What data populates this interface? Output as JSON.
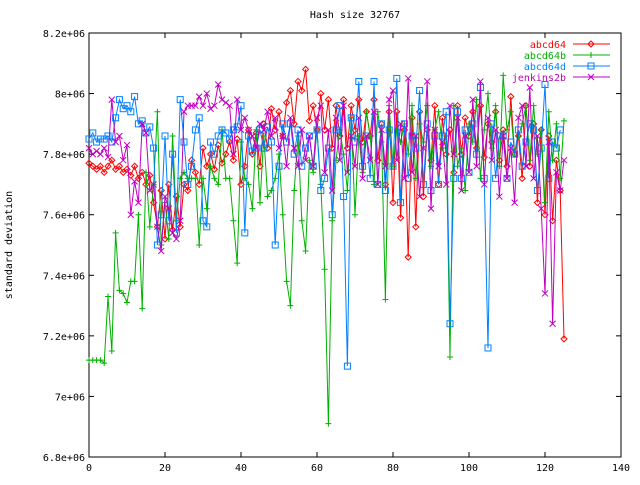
{
  "chart_data": {
    "type": "line",
    "title": "Hash size 32767",
    "xlabel": "",
    "ylabel": "standard deviation",
    "xlim": [
      0,
      140
    ],
    "ylim": [
      6800000,
      8200000
    ],
    "x_ticks": [
      {
        "value": 0,
        "label": "0"
      },
      {
        "value": 20,
        "label": "20"
      },
      {
        "value": 40,
        "label": "40"
      },
      {
        "value": 60,
        "label": "60"
      },
      {
        "value": 80,
        "label": "80"
      },
      {
        "value": 100,
        "label": "100"
      },
      {
        "value": 120,
        "label": "120"
      },
      {
        "value": 140,
        "label": "140"
      }
    ],
    "y_ticks": [
      {
        "value": 6800000,
        "label": "6.8e+06"
      },
      {
        "value": 7000000,
        "label": "7e+06"
      },
      {
        "value": 7200000,
        "label": "7.2e+06"
      },
      {
        "value": 7400000,
        "label": "7.4e+06"
      },
      {
        "value": 7600000,
        "label": "7.6e+06"
      },
      {
        "value": 7800000,
        "label": "7.8e+06"
      },
      {
        "value": 8000000,
        "label": "8e+06"
      },
      {
        "value": 8200000,
        "label": "8.2e+06"
      }
    ],
    "grid": false,
    "legend": "top-right",
    "series": [
      {
        "name": "abcd64",
        "color": "#ff0000",
        "marker": "diamond",
        "values": [
          7770000,
          7760000,
          7750000,
          7760000,
          7740000,
          7760000,
          7780000,
          7750000,
          7760000,
          7740000,
          7750000,
          7730000,
          7760000,
          7720000,
          7740000,
          7700000,
          7730000,
          7640000,
          7560000,
          7680000,
          7520000,
          7700000,
          7550000,
          7660000,
          7560000,
          7700000,
          7680000,
          7780000,
          7740000,
          7700000,
          7820000,
          7760000,
          7800000,
          7750000,
          7830000,
          7770000,
          7800000,
          7840000,
          7780000,
          7850000,
          7700000,
          7760000,
          7880000,
          7800000,
          7870000,
          7760000,
          7900000,
          7820000,
          7950000,
          7880000,
          7940000,
          7860000,
          7970000,
          8010000,
          7900000,
          8040000,
          8010000,
          8080000,
          7910000,
          7960000,
          7880000,
          8000000,
          7880000,
          7980000,
          7820000,
          7960000,
          7860000,
          7980000,
          7820000,
          7960000,
          7880000,
          7980000,
          7840000,
          7940000,
          7860000,
          7980000,
          7780000,
          7900000,
          7700000,
          7940000,
          7640000,
          7940000,
          7590000,
          7880000,
          7460000,
          7920000,
          7560000,
          7940000,
          7660000,
          7880000,
          7780000,
          7960000,
          7700000,
          7920000,
          7800000,
          7880000,
          7740000,
          7960000,
          7800000,
          7920000,
          7860000,
          7940000,
          7820000,
          7960000,
          7790000,
          7900000,
          7840000,
          7940000,
          7780000,
          7880000,
          7760000,
          7990000,
          7800000,
          7860000,
          7720000,
          7960000,
          7760000,
          7900000,
          7640000,
          7880000,
          7600000,
          7860000,
          7580000,
          7780000,
          7680000,
          7190000
        ]
      },
      {
        "name": "abcd64b",
        "color": "#00b000",
        "marker": "plus",
        "values": [
          7120000,
          7120000,
          7120000,
          7120000,
          7110000,
          7330000,
          7150000,
          7540000,
          7350000,
          7340000,
          7310000,
          7380000,
          7380000,
          7600000,
          7290000,
          7740000,
          7560000,
          7700000,
          7940000,
          7500000,
          7640000,
          7520000,
          7860000,
          7580000,
          7720000,
          7740000,
          7720000,
          7720000,
          7720000,
          7500000,
          7720000,
          7620000,
          7760000,
          7720000,
          7700000,
          7880000,
          7720000,
          7720000,
          7580000,
          7440000,
          7840000,
          7720000,
          7700000,
          7620000,
          7880000,
          7640000,
          7860000,
          7660000,
          7680000,
          7720000,
          7800000,
          7600000,
          7380000,
          7300000,
          7680000,
          7860000,
          7580000,
          7480000,
          7780000,
          7740000,
          7880000,
          7700000,
          7420000,
          6910000,
          7580000,
          7780000,
          7880000,
          7800000,
          7680000,
          7920000,
          7600000,
          7860000,
          7740000,
          7940000,
          7860000,
          7700000,
          7940000,
          7840000,
          7320000,
          7960000,
          7760000,
          7880000,
          7840000,
          7900000,
          7800000,
          7960000,
          7720000,
          7900000,
          7840000,
          7960000,
          7760000,
          7880000,
          7940000,
          7820000,
          7860000,
          7130000,
          7960000,
          7760000,
          7820000,
          7680000,
          7900000,
          7840000,
          7980000,
          7720000,
          7880000,
          8000000,
          7820000,
          7960000,
          7760000,
          8060000,
          7880000,
          7940000,
          7800000,
          7860000,
          7900000,
          7960000,
          7780000,
          7960000,
          7800000,
          7880000,
          7640000,
          7940000,
          7780000,
          7900000,
          7720000,
          7910000
        ]
      },
      {
        "name": "abcd64d",
        "color": "#0080ff",
        "marker": "square",
        "values": [
          7850000,
          7870000,
          7840000,
          7850000,
          7850000,
          7860000,
          7840000,
          7920000,
          7980000,
          7950000,
          7960000,
          7940000,
          7990000,
          7900000,
          7910000,
          7870000,
          7890000,
          7820000,
          7500000,
          7600000,
          7860000,
          7580000,
          7800000,
          7540000,
          7980000,
          7840000,
          7700000,
          7760000,
          7880000,
          7920000,
          7580000,
          7560000,
          7840000,
          7800000,
          7860000,
          7880000,
          7870000,
          7850000,
          7880000,
          7890000,
          7960000,
          7540000,
          7860000,
          7810000,
          7820000,
          7880000,
          7820000,
          7890000,
          7840000,
          7500000,
          7760000,
          7900000,
          7840000,
          7900000,
          7800000,
          7880000,
          7760000,
          7820000,
          7860000,
          7760000,
          7880000,
          7680000,
          7720000,
          7820000,
          7600000,
          7880000,
          7960000,
          7660000,
          7100000,
          7920000,
          7840000,
          8040000,
          7760000,
          7860000,
          7720000,
          8040000,
          7700000,
          7900000,
          7680000,
          7880000,
          7760000,
          8050000,
          7640000,
          7900000,
          7720000,
          7860000,
          7820000,
          8010000,
          7700000,
          7900000,
          7680000,
          7860000,
          7700000,
          7860000,
          7940000,
          7240000,
          7720000,
          7940000,
          7720000,
          7880000,
          7740000,
          7900000,
          7800000,
          8020000,
          7720000,
          7160000,
          7900000,
          7720000,
          7860000,
          7860000,
          7720000,
          7840000,
          7800000,
          7880000,
          7760000,
          7840000,
          7900000,
          7880000,
          7680000,
          7820000,
          8030000,
          7720000,
          7840000,
          7820000,
          7880000
        ]
      },
      {
        "name": "jenkins2b",
        "color": "#c000c0",
        "marker": "cross",
        "values": [
          7820000,
          7800000,
          7810000,
          7800000,
          7820000,
          7790000,
          7980000,
          7840000,
          7860000,
          7780000,
          7830000,
          7600000,
          7710000,
          7640000,
          7900000,
          7870000,
          7680000,
          7700000,
          7560000,
          7480000,
          7660000,
          7620000,
          7540000,
          7520000,
          7580000,
          7940000,
          7960000,
          7960000,
          7960000,
          7990000,
          7960000,
          8000000,
          7950000,
          7960000,
          8030000,
          7980000,
          7970000,
          7960000,
          7800000,
          7980000,
          7880000,
          7920000,
          7880000,
          7860000,
          7820000,
          7900000,
          7880000,
          7940000,
          7860000,
          7920000,
          7820000,
          7860000,
          7760000,
          7920000,
          7820000,
          7760000,
          7880000,
          7780000,
          7860000,
          7760000,
          7920000,
          7960000,
          7740000,
          7880000,
          7680000,
          7920000,
          7780000,
          7960000,
          7740000,
          7860000,
          7760000,
          7920000,
          7720000,
          7860000,
          7780000,
          7940000,
          7700000,
          7880000,
          7760000,
          7980000,
          8010000,
          7780000,
          7900000,
          7720000,
          8050000,
          7740000,
          7860000,
          7660000,
          7820000,
          8040000,
          7620000,
          7880000,
          7760000,
          7840000,
          7700000,
          7960000,
          7800000,
          7920000,
          7680000,
          7860000,
          7740000,
          7980000,
          7760000,
          8040000,
          7700000,
          7920000,
          7780000,
          7880000,
          7660000,
          7860000,
          7720000,
          7820000,
          7640000,
          7920000,
          7960000,
          7760000,
          8020000,
          7720000,
          7860000,
          7620000,
          7340000,
          7840000,
          7240000,
          7740000,
          7680000,
          7780000
        ]
      }
    ]
  }
}
